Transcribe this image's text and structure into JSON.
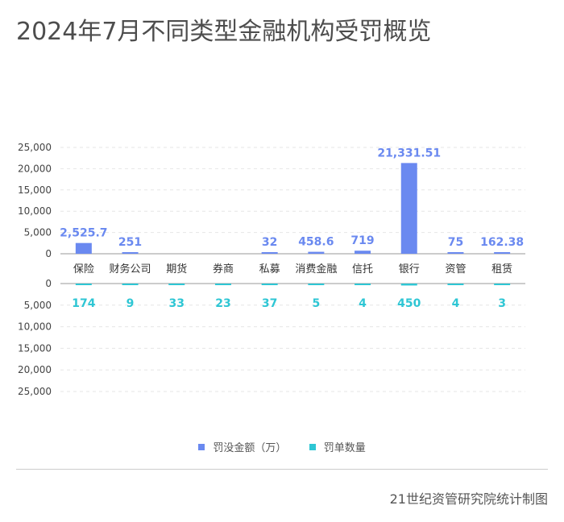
{
  "title": "2024年7月不同类型金融机构受罚概览",
  "source": "21世纪资管研究院统计制图",
  "colors": {
    "amount": "#6a89f0",
    "count": "#2ec6d4",
    "axis": "#999999",
    "grid": "#e6e6e6",
    "tick_text": "#444444"
  },
  "chart_data": {
    "type": "bar",
    "categories": [
      "保险",
      "财务公司",
      "期货",
      "券商",
      "私募",
      "消费金融",
      "信托",
      "银行",
      "资管",
      "租赁"
    ],
    "series": [
      {
        "name": "罚没金额（万）",
        "values": [
          2525.7,
          251,
          null,
          null,
          32,
          458.6,
          719,
          21331.51,
          75,
          162.38
        ],
        "labels": [
          "2,525.7",
          "251",
          "",
          "",
          "32",
          "458.6",
          "719",
          "21,331.51",
          "75",
          "162.38"
        ]
      },
      {
        "name": "罚单数量",
        "values": [
          174,
          9,
          33,
          23,
          37,
          5,
          4,
          450,
          4,
          3
        ],
        "labels": [
          "174",
          "9",
          "33",
          "23",
          "37",
          "5",
          "4",
          "450",
          "4",
          "3"
        ]
      }
    ],
    "top_axis": {
      "ylim": [
        0,
        25000
      ],
      "ticks": [
        "0",
        "5,000",
        "10,000",
        "15,000",
        "20,000",
        "25,000"
      ]
    },
    "bottom_axis": {
      "ylim": [
        0,
        25000
      ],
      "inverted": true,
      "ticks": [
        "0",
        "5,000",
        "10,000",
        "15,000",
        "20,000",
        "25,000"
      ]
    },
    "grid": true,
    "legend": "bottom-center"
  }
}
